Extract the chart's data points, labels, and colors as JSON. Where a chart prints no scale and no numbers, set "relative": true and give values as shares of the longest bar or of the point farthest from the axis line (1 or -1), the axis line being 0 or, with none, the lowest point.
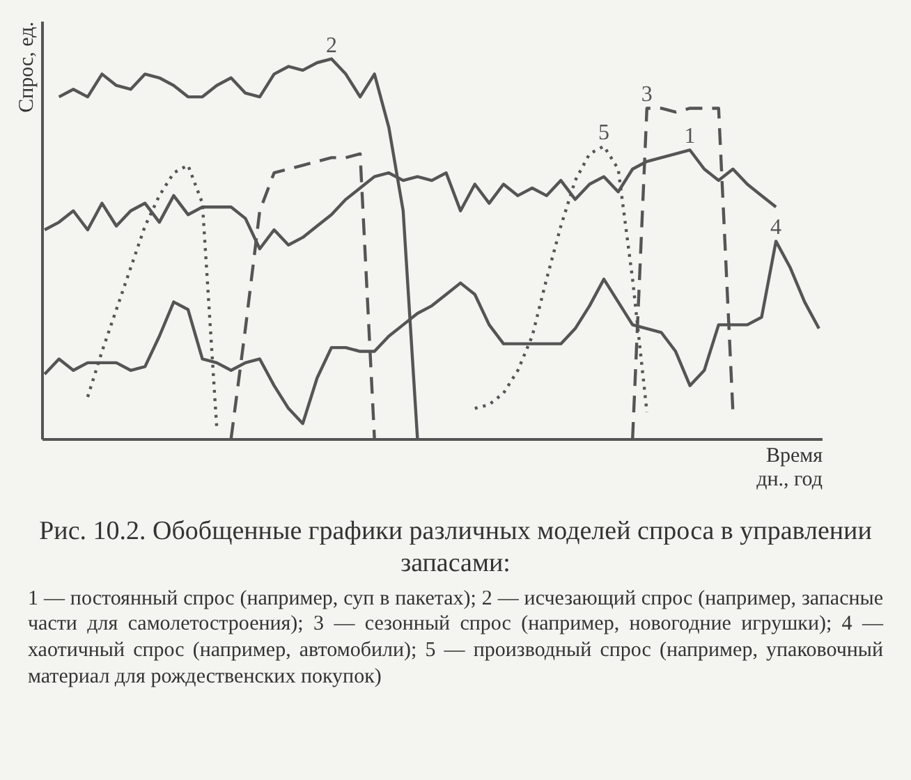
{
  "chart_data": {
    "type": "line",
    "relative": true,
    "title": "Рис. 10.2. Обобщенные графики различных моделей спроса в управлении запасами:",
    "xlabel": "Время\nдн., год",
    "ylabel": "Спрос, ед.",
    "categories": [
      null,
      null,
      null,
      null,
      null,
      null,
      null,
      null,
      null,
      null,
      null,
      null,
      null,
      null,
      null,
      null,
      null,
      null,
      null,
      null,
      null,
      null,
      null,
      null,
      null,
      null,
      null,
      null,
      null,
      null,
      null,
      null,
      null,
      null,
      null,
      null,
      null,
      null,
      null,
      null,
      null,
      null,
      null,
      null,
      null,
      null,
      null,
      null,
      null,
      null,
      null,
      null,
      null,
      null,
      null
    ],
    "series": [
      {
        "name": "1",
        "color": "#555555",
        "line_style": "solid",
        "values": [
          0.55,
          0.57,
          0.6,
          0.55,
          0.62,
          0.56,
          0.6,
          0.62,
          0.57,
          0.64,
          0.59,
          0.61,
          0.61,
          0.61,
          0.58,
          0.5,
          0.55,
          0.51,
          0.53,
          0.56,
          0.59,
          0.63,
          0.66,
          0.69,
          0.7,
          0.68,
          0.69,
          0.68,
          0.7,
          0.6,
          0.67,
          0.62,
          0.67,
          0.64,
          0.66,
          0.64,
          0.68,
          0.63,
          0.67,
          0.69,
          0.65,
          0.71,
          0.73,
          0.74,
          0.75,
          0.76,
          0.71,
          0.68,
          0.71,
          0.67,
          0.64,
          0.61,
          null,
          null,
          null
        ]
      },
      {
        "name": "2",
        "color": "#555555",
        "line_style": "solid",
        "values": [
          null,
          0.9,
          0.92,
          0.9,
          0.96,
          0.93,
          0.92,
          0.96,
          0.95,
          0.93,
          0.9,
          0.9,
          0.93,
          0.95,
          0.91,
          0.9,
          0.96,
          0.98,
          0.97,
          0.99,
          1,
          0.96,
          0.9,
          0.96,
          0.82,
          0.6,
          0,
          null,
          null,
          null,
          null,
          null,
          null,
          null,
          null,
          null,
          null,
          null,
          null,
          null,
          null,
          null,
          null,
          null,
          null,
          null,
          null,
          null,
          null,
          null,
          null,
          null,
          null,
          null,
          null
        ]
      },
      {
        "name": "3",
        "color": "#555555",
        "line_style": "dashed",
        "values": [
          null,
          null,
          null,
          null,
          null,
          null,
          null,
          null,
          null,
          null,
          null,
          null,
          null,
          0,
          0.29,
          0.6,
          0.7,
          0.71,
          0.72,
          0.73,
          0.74,
          0.74,
          0.75,
          0,
          null,
          null,
          null,
          null,
          null,
          null,
          null,
          null,
          null,
          null,
          null,
          null,
          null,
          null,
          null,
          null,
          null,
          0,
          0.87,
          0.87,
          0.86,
          0.87,
          0.87,
          0.87,
          0.07,
          null,
          null,
          null,
          null,
          null,
          null
        ]
      },
      {
        "name": "4",
        "color": "#555555",
        "line_style": "solid",
        "values": [
          0.17,
          0.21,
          0.18,
          0.2,
          0.2,
          0.2,
          0.18,
          0.19,
          0.27,
          0.36,
          0.34,
          0.21,
          0.2,
          0.18,
          0.2,
          0.21,
          0.14,
          0.08,
          0.04,
          0.16,
          0.24,
          0.24,
          0.23,
          0.23,
          0.27,
          0.3,
          0.33,
          0.35,
          0.38,
          0.41,
          0.38,
          0.3,
          0.25,
          0.25,
          0.25,
          0.25,
          0.25,
          0.29,
          0.35,
          0.42,
          0.36,
          0.3,
          0.29,
          0.28,
          0.23,
          0.14,
          0.18,
          0.3,
          0.3,
          0.3,
          0.32,
          0.52,
          0.45,
          0.36,
          0.29
        ]
      },
      {
        "name": "5",
        "color": "#555555",
        "line_style": "dotted",
        "values": [
          null,
          null,
          null,
          0.11,
          0.23,
          0.34,
          0.45,
          0.56,
          0.64,
          0.7,
          0.72,
          0.62,
          0.03,
          null,
          null,
          null,
          null,
          null,
          null,
          null,
          null,
          null,
          null,
          null,
          null,
          null,
          null,
          null,
          null,
          null,
          0.08,
          0.09,
          0.12,
          0.18,
          0.27,
          0.42,
          0.56,
          0.68,
          0.75,
          0.77,
          0.71,
          0.42,
          0.07,
          null,
          null,
          null,
          null,
          null,
          null,
          null,
          null,
          null,
          null,
          null,
          null
        ]
      }
    ],
    "grid": false,
    "annotations": [
      "1 — постоянный спрос (например, суп в пакетах); 2 — исчезающий спрос (например, запасные части для самолетостроения); 3 — сезонный спрос (например, новогодние игрушки); 4 — хаотичный спрос (например, автомобили); 5 — производный спрос (например, упаковочный материал для рождественских покупок)"
    ]
  }
}
